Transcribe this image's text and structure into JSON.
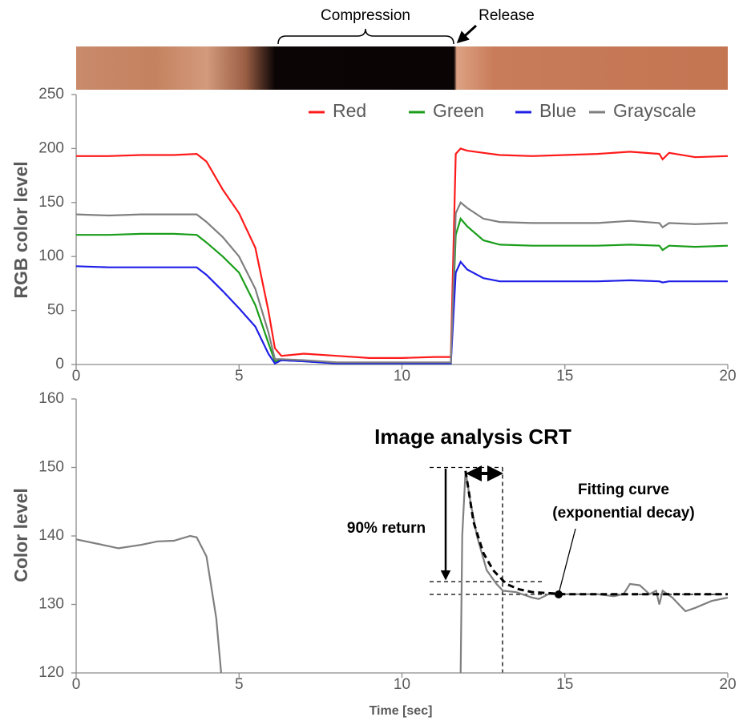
{
  "chart_data": [
    {
      "type": "line",
      "ylabel": "RGB color level",
      "annotations": [
        "Compression",
        "Release"
      ],
      "x": [
        0,
        1,
        2,
        3,
        3.7,
        4,
        4.5,
        5,
        5.5,
        5.9,
        6.1,
        6.3,
        7,
        8,
        9,
        10,
        11,
        11.5,
        11.65,
        11.8,
        12,
        12.5,
        13,
        14,
        15,
        16,
        17,
        17.9,
        18,
        18.2,
        19,
        20
      ],
      "series": [
        {
          "name": "Red",
          "color": "#ff1a1a",
          "values": [
            193,
            193,
            194,
            194,
            195,
            188,
            162,
            140,
            108,
            50,
            15,
            8,
            10,
            8,
            6,
            6,
            7,
            7,
            195,
            200,
            198,
            196,
            194,
            193,
            194,
            195,
            197,
            195,
            190,
            196,
            192,
            193
          ]
        },
        {
          "name": "Green",
          "color": "#1a9e1a",
          "values": [
            120,
            120,
            121,
            121,
            120,
            113,
            100,
            85,
            55,
            20,
            3,
            4,
            3,
            1,
            1,
            1,
            1,
            1,
            120,
            135,
            128,
            115,
            111,
            110,
            110,
            110,
            111,
            110,
            106,
            110,
            109,
            110
          ]
        },
        {
          "name": "Blue",
          "color": "#1f1fe8",
          "values": [
            91,
            90,
            90,
            90,
            90,
            83,
            68,
            52,
            35,
            10,
            1,
            4,
            3,
            1,
            1,
            1,
            1,
            1,
            85,
            95,
            88,
            80,
            77,
            77,
            77,
            77,
            78,
            77,
            76,
            77,
            77,
            77
          ]
        },
        {
          "name": "Grayscale",
          "color": "#7f7f7f",
          "values": [
            139,
            138,
            139,
            139,
            139,
            132,
            118,
            100,
            70,
            30,
            5,
            5,
            4,
            2,
            2,
            2,
            2,
            2,
            140,
            150,
            145,
            135,
            132,
            131,
            131,
            131,
            133,
            131,
            127,
            131,
            130,
            131
          ]
        }
      ],
      "xlim": [
        0,
        20
      ],
      "xticks": [
        0,
        5,
        10,
        15,
        20
      ],
      "ylim": [
        0,
        250
      ],
      "yticks": [
        0,
        50,
        100,
        150,
        200,
        250
      ],
      "legend": "upper right",
      "grid": false
    },
    {
      "type": "line",
      "title": "Image analysis CRT",
      "xlabel": "Time [sec]",
      "ylabel": "Color level",
      "annotations": [
        "90% return",
        "Fitting curve",
        "(exponential decay)"
      ],
      "series": [
        {
          "color": "#7f7f7f",
          "style": "solid",
          "x": [
            0,
            0.5,
            1,
            1.3,
            2,
            2.5,
            3,
            3.5,
            3.7,
            4,
            4.3,
            4.45,
            8,
            11.8,
            11.85,
            11.95,
            12.1,
            12.3,
            12.6,
            12.9,
            13.1,
            13.5,
            14,
            14.2,
            14.5,
            15,
            16,
            16.5,
            16.8,
            17,
            17.3,
            17.6,
            17.8,
            17.9,
            18,
            18.3,
            18.5,
            18.7,
            19,
            19.5,
            20
          ],
          "values": [
            139.5,
            139,
            138.5,
            138.2,
            138.7,
            139.2,
            139.3,
            140,
            139.8,
            137,
            128,
            120,
            null,
            120,
            140,
            149.5,
            145,
            140,
            135,
            133,
            132,
            131.8,
            131,
            130.8,
            131.5,
            131.5,
            131.5,
            131.2,
            131.5,
            133,
            132.8,
            131.5,
            132,
            130,
            132,
            131,
            130,
            129,
            129.5,
            130.5,
            131
          ]
        },
        {
          "color": "#000000",
          "style": "dashed",
          "x": [
            11.95,
            12.2,
            12.5,
            12.8,
            13.2,
            13.6,
            14,
            15,
            20
          ],
          "values": [
            149.5,
            142,
            137.5,
            135,
            133,
            132.2,
            131.8,
            131.5,
            131.5
          ]
        }
      ],
      "xlim": [
        0,
        20
      ],
      "xticks": [
        0,
        5,
        10,
        15,
        20
      ],
      "ylim": [
        120,
        160
      ],
      "yticks": [
        120,
        130,
        140,
        150,
        160
      ],
      "grid": false
    }
  ]
}
